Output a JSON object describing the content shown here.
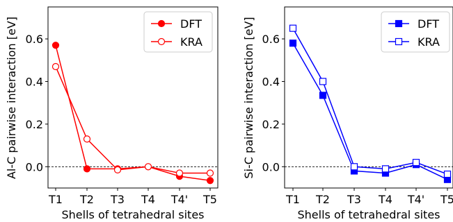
{
  "chart_data": [
    {
      "type": "line",
      "xlabel": "Shells of tetrahedral sites",
      "ylabel": "Al-C pairwise interaction [eV]",
      "categories": [
        "T1",
        "T2",
        "T3",
        "T4",
        "T4'",
        "T5"
      ],
      "ylim": [
        -0.1,
        0.75
      ],
      "yticks": [
        "0.0",
        "0.2",
        "0.4",
        "0.6"
      ],
      "grid": false,
      "zero_line": "dashed",
      "legend_position": "top-right",
      "color": "#ff0000",
      "series": [
        {
          "name": "DFT",
          "marker": "filled-circle",
          "values": [
            0.57,
            -0.01,
            -0.01,
            0.0,
            -0.045,
            -0.065
          ]
        },
        {
          "name": "KRA",
          "marker": "open-circle",
          "values": [
            0.47,
            0.13,
            -0.015,
            0.0,
            -0.03,
            -0.03
          ]
        }
      ]
    },
    {
      "type": "line",
      "xlabel": "Shells of tetrahedral sites",
      "ylabel": "Si-C pairwise interaction [eV]",
      "categories": [
        "T1",
        "T2",
        "T3",
        "T4",
        "T4'",
        "T5"
      ],
      "ylim": [
        -0.1,
        0.75
      ],
      "yticks": [
        "0.0",
        "0.2",
        "0.4",
        "0.6"
      ],
      "grid": false,
      "zero_line": "dashed",
      "legend_position": "top-right",
      "color": "#0000ff",
      "series": [
        {
          "name": "DFT",
          "marker": "filled-square",
          "values": [
            0.58,
            0.335,
            -0.02,
            -0.03,
            0.01,
            -0.06
          ]
        },
        {
          "name": "KRA",
          "marker": "open-square",
          "values": [
            0.65,
            0.4,
            0.0,
            -0.01,
            0.02,
            -0.035
          ]
        }
      ]
    }
  ]
}
